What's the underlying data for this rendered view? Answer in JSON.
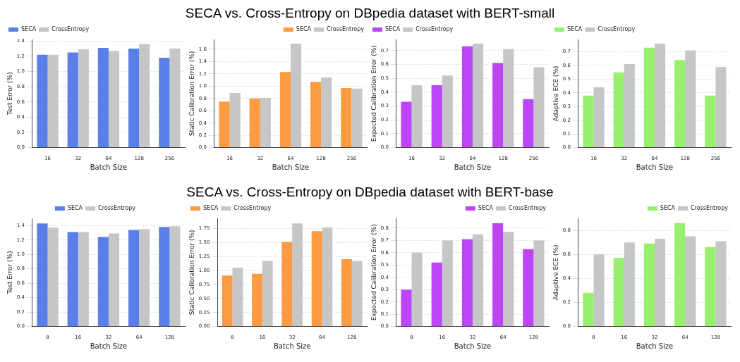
{
  "chart_data": [
    {
      "type": "bar",
      "title": "SECA vs. Cross-Entropy on DBpedia dataset with BERT-small",
      "xlabel": "Batch Size",
      "ylabel": "Test Error (%)",
      "categories": [
        "16",
        "32",
        "64",
        "128",
        "256"
      ],
      "ylim": [
        0,
        1.42
      ],
      "yticks": [
        {
          "value": 0,
          "label": "0.0"
        },
        0.2,
        0.4,
        0.6,
        0.8,
        {
          "value": 1,
          "label": "1.0"
        },
        1.2,
        1.4
      ],
      "grid": "y",
      "legend": "top left",
      "series": [
        {
          "name": "SECA",
          "color": "#5a7fe8",
          "values": [
            1.22,
            1.25,
            1.31,
            1.3,
            1.18
          ]
        },
        {
          "name": "CrossEntropy",
          "color": "#c4c6c7",
          "values": [
            1.22,
            1.29,
            1.27,
            1.36,
            1.3
          ]
        }
      ]
    },
    {
      "type": "bar",
      "xlabel": "Batch Size",
      "ylabel": "Static Calibration Error (%)",
      "categories": [
        "16",
        "32",
        "64",
        "128",
        "256"
      ],
      "ylim": [
        0,
        1.76
      ],
      "yticks": [
        {
          "value": 0,
          "label": "0.0"
        },
        0.2,
        0.4,
        0.6,
        0.8,
        {
          "value": 1,
          "label": "1.0"
        },
        1.2,
        1.4,
        1.6
      ],
      "grid": "y",
      "legend": "top right",
      "series": [
        {
          "name": "SECA",
          "color": "#fd9b43",
          "values": [
            0.75,
            0.8,
            1.23,
            1.07,
            0.97
          ]
        },
        {
          "name": "CrossEntropy",
          "color": "#c4c6c7",
          "values": [
            0.89,
            0.81,
            1.69,
            1.14,
            0.96
          ]
        }
      ]
    },
    {
      "type": "bar",
      "xlabel": "Batch Size",
      "ylabel": "Expected Calibration Error (%)",
      "categories": [
        "16",
        "32",
        "64",
        "128",
        "256"
      ],
      "ylim": [
        0,
        0.78
      ],
      "yticks": [
        {
          "value": 0,
          "label": "0.0"
        },
        0.1,
        0.2,
        0.3,
        0.4,
        0.5,
        0.6,
        0.7
      ],
      "grid": "y",
      "legend": "top left",
      "series": [
        {
          "name": "SECA",
          "color": "#bb45f7",
          "values": [
            0.33,
            0.45,
            0.73,
            0.61,
            0.35
          ]
        },
        {
          "name": "CrossEntropy",
          "color": "#c4c6c7",
          "values": [
            0.45,
            0.52,
            0.75,
            0.71,
            0.58
          ]
        }
      ]
    },
    {
      "type": "bar",
      "xlabel": "Batch Size",
      "ylabel": "Adaptive ECE (%)",
      "categories": [
        "16",
        "32",
        "64",
        "128",
        "256"
      ],
      "ylim": [
        0,
        0.79
      ],
      "yticks": [
        {
          "value": 0,
          "label": "0.0"
        },
        0.1,
        0.2,
        0.3,
        0.4,
        0.5,
        0.6,
        0.7
      ],
      "grid": "y",
      "legend": "top left",
      "series": [
        {
          "name": "SECA",
          "color": "#98ef6e",
          "values": [
            0.38,
            0.55,
            0.73,
            0.64,
            0.38
          ]
        },
        {
          "name": "CrossEntropy",
          "color": "#c4c6c7",
          "values": [
            0.44,
            0.61,
            0.76,
            0.71,
            0.59
          ]
        }
      ]
    },
    {
      "type": "bar",
      "title": "SECA vs. Cross-Entropy on DBpedia dataset with BERT-base",
      "xlabel": "Batch Size",
      "ylabel": "Test Error (%)",
      "categories": [
        "8",
        "16",
        "32",
        "64",
        "128"
      ],
      "ylim": [
        0,
        1.5
      ],
      "yticks": [
        {
          "value": 0,
          "label": "0.0"
        },
        0.2,
        0.4,
        0.6,
        0.8,
        {
          "value": 1,
          "label": "1.0"
        },
        1.2,
        1.4
      ],
      "grid": "y",
      "legend": "top",
      "series": [
        {
          "name": "SECA",
          "color": "#5a7fe8",
          "values": [
            1.43,
            1.31,
            1.24,
            1.34,
            1.38
          ]
        },
        {
          "name": "CrossEntropy",
          "color": "#c4c6c7",
          "values": [
            1.37,
            1.31,
            1.29,
            1.35,
            1.39
          ]
        }
      ]
    },
    {
      "type": "bar",
      "xlabel": "Batch Size",
      "ylabel": "Static Calibration Error (%)",
      "categories": [
        "8",
        "16",
        "32",
        "64",
        "128"
      ],
      "ylim": [
        0,
        1.93
      ],
      "yticks": [
        {
          "value": 0,
          "label": "0.00"
        },
        {
          "value": 0.25,
          "label": "0.25"
        },
        {
          "value": 0.5,
          "label": "0.50"
        },
        {
          "value": 0.75,
          "label": "0.75"
        },
        {
          "value": 1,
          "label": "1.00"
        },
        {
          "value": 1.25,
          "label": "1.25"
        },
        {
          "value": 1.5,
          "label": "1.50"
        },
        {
          "value": 1.75,
          "label": "1.75"
        }
      ],
      "grid": "y",
      "legend": "top left",
      "series": [
        {
          "name": "SECA",
          "color": "#fd9b43",
          "values": [
            0.91,
            0.94,
            1.51,
            1.7,
            1.2
          ]
        },
        {
          "name": "CrossEntropy",
          "color": "#c4c6c7",
          "values": [
            1.05,
            1.17,
            1.84,
            1.77,
            1.17
          ]
        }
      ]
    },
    {
      "type": "bar",
      "xlabel": "Batch Size",
      "ylabel": "Expected Calibration Error (%)",
      "categories": [
        "8",
        "16",
        "32",
        "64",
        "128"
      ],
      "ylim": [
        0,
        0.88
      ],
      "yticks": [
        {
          "value": 0,
          "label": "0.0"
        },
        0.1,
        0.2,
        0.3,
        0.4,
        0.5,
        0.6,
        0.7,
        0.8
      ],
      "grid": "y",
      "legend": "top right",
      "series": [
        {
          "name": "SECA",
          "color": "#bb45f7",
          "values": [
            0.3,
            0.52,
            0.71,
            0.84,
            0.63
          ]
        },
        {
          "name": "CrossEntropy",
          "color": "#c4c6c7",
          "values": [
            0.6,
            0.7,
            0.75,
            0.77,
            0.7
          ]
        }
      ]
    },
    {
      "type": "bar",
      "xlabel": "Batch Size",
      "ylabel": "Adaptive ECE (%)",
      "categories": [
        "8",
        "16",
        "32",
        "64",
        "128"
      ],
      "ylim": [
        0,
        0.9
      ],
      "yticks": [
        {
          "value": 0,
          "label": "0.0"
        },
        0.2,
        0.4,
        0.6,
        0.8
      ],
      "grid": "y",
      "legend": "top right",
      "series": [
        {
          "name": "SECA",
          "color": "#98ef6e",
          "values": [
            0.28,
            0.57,
            0.69,
            0.86,
            0.66
          ]
        },
        {
          "name": "CrossEntropy",
          "color": "#c4c6c7",
          "values": [
            0.6,
            0.7,
            0.73,
            0.75,
            0.71
          ]
        }
      ]
    }
  ]
}
